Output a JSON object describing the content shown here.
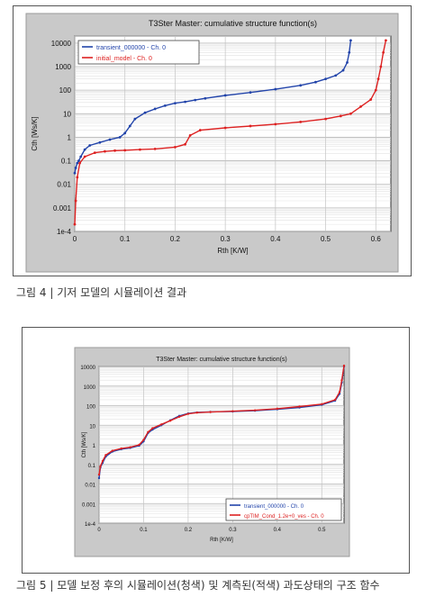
{
  "captions": {
    "fig4": "그림 4 |  기저 모델의 시뮬레이션 결과",
    "fig5": "그림 5 |  모델 보정 후의 시뮬레이션(청색) 및 계측된(적색) 과도상태의 구조 함수"
  },
  "chart_data": [
    {
      "type": "line",
      "title": "T3Ster Master: cumulative structure function(s)",
      "xlabel": "Rth  [K/W]",
      "ylabel": "Cth  [Ws/K]",
      "xlim": [
        0,
        0.63
      ],
      "ylim": [
        0.0001,
        20000
      ],
      "yscale": "log",
      "grid": true,
      "legend_position": "top-left",
      "x_ticks": [
        {
          "v": 0,
          "label": "0"
        },
        {
          "v": 0.1,
          "label": "0.1"
        },
        {
          "v": 0.2,
          "label": "0.2"
        },
        {
          "v": 0.3,
          "label": "0.3"
        },
        {
          "v": 0.4,
          "label": "0.4"
        },
        {
          "v": 0.5,
          "label": "0.5"
        },
        {
          "v": 0.6,
          "label": "0.6"
        }
      ],
      "y_ticks": [
        {
          "v": 10000,
          "label": "10000"
        },
        {
          "v": 1000,
          "label": "1000"
        },
        {
          "v": 100,
          "label": "100"
        },
        {
          "v": 10,
          "label": "10"
        },
        {
          "v": 1,
          "label": "1"
        },
        {
          "v": 0.1,
          "label": "0.1"
        },
        {
          "v": 0.01,
          "label": "0.01"
        },
        {
          "v": 0.001,
          "label": "0.001"
        },
        {
          "v": 0.0001,
          "label": "1e-4"
        }
      ],
      "series": [
        {
          "name": "transient_000000 - Ch. 0",
          "color": "#2244aa",
          "x": [
            0,
            0.002,
            0.005,
            0.008,
            0.012,
            0.02,
            0.03,
            0.05,
            0.07,
            0.09,
            0.1,
            0.11,
            0.12,
            0.14,
            0.16,
            0.18,
            0.2,
            0.22,
            0.24,
            0.26,
            0.3,
            0.35,
            0.4,
            0.45,
            0.48,
            0.5,
            0.52,
            0.535,
            0.543,
            0.547,
            0.55
          ],
          "y": [
            0.03,
            0.05,
            0.08,
            0.1,
            0.15,
            0.3,
            0.45,
            0.6,
            0.8,
            1.0,
            1.5,
            3,
            6,
            11,
            16,
            22,
            28,
            32,
            38,
            45,
            60,
            80,
            110,
            160,
            220,
            300,
            420,
            700,
            1500,
            4000,
            13000
          ]
        },
        {
          "name": "initial_model - Ch. 0",
          "color": "#dd2222",
          "x": [
            0,
            0.002,
            0.005,
            0.01,
            0.02,
            0.04,
            0.06,
            0.08,
            0.1,
            0.13,
            0.16,
            0.2,
            0.22,
            0.23,
            0.25,
            0.3,
            0.35,
            0.4,
            0.45,
            0.5,
            0.53,
            0.55,
            0.57,
            0.59,
            0.6,
            0.605,
            0.61,
            0.615,
            0.62
          ],
          "y": [
            0.0002,
            0.002,
            0.02,
            0.08,
            0.15,
            0.22,
            0.25,
            0.27,
            0.28,
            0.3,
            0.32,
            0.38,
            0.5,
            1.2,
            2.0,
            2.5,
            3,
            3.6,
            4.5,
            6,
            8,
            10,
            20,
            40,
            100,
            300,
            1000,
            4000,
            13000
          ]
        }
      ]
    },
    {
      "type": "line",
      "title": "T3Ster Master: cumulative structure function(s)",
      "xlabel": "Rth  [K/W]",
      "ylabel": "Cth  [Ws/K]",
      "xlim": [
        0,
        0.55
      ],
      "ylim": [
        0.0001,
        10000
      ],
      "yscale": "log",
      "grid": true,
      "legend_position": "bottom-right",
      "x_ticks": [
        {
          "v": 0,
          "label": "0"
        },
        {
          "v": 0.1,
          "label": "0.1"
        },
        {
          "v": 0.2,
          "label": "0.2"
        },
        {
          "v": 0.3,
          "label": "0.3"
        },
        {
          "v": 0.4,
          "label": "0.4"
        },
        {
          "v": 0.5,
          "label": "0.5"
        }
      ],
      "y_ticks": [
        {
          "v": 10000,
          "label": "10000"
        },
        {
          "v": 1000,
          "label": "1000"
        },
        {
          "v": 100,
          "label": "100"
        },
        {
          "v": 10,
          "label": "10"
        },
        {
          "v": 1,
          "label": "1"
        },
        {
          "v": 0.1,
          "label": "0.1"
        },
        {
          "v": 0.01,
          "label": "0.01"
        },
        {
          "v": 0.001,
          "label": "0.001"
        },
        {
          "v": 0.0001,
          "label": "1e-4"
        }
      ],
      "series": [
        {
          "name": "transient_000000 - Ch. 0",
          "color": "#2244aa",
          "x": [
            0,
            0.003,
            0.008,
            0.015,
            0.03,
            0.05,
            0.07,
            0.09,
            0.1,
            0.11,
            0.12,
            0.14,
            0.16,
            0.18,
            0.2,
            0.22,
            0.25,
            0.3,
            0.35,
            0.4,
            0.45,
            0.5,
            0.53,
            0.54,
            0.545,
            0.55
          ],
          "y": [
            0.02,
            0.07,
            0.12,
            0.25,
            0.45,
            0.6,
            0.7,
            0.9,
            1.5,
            4,
            6,
            10,
            18,
            30,
            40,
            45,
            48,
            50,
            55,
            65,
            80,
            110,
            180,
            400,
            1500,
            10000
          ]
        },
        {
          "name": "cpTIM_Cond_1.2e+0_ves - Ch. 0",
          "color": "#dd2222",
          "x": [
            0,
            0.003,
            0.008,
            0.015,
            0.03,
            0.05,
            0.07,
            0.09,
            0.1,
            0.11,
            0.12,
            0.14,
            0.16,
            0.18,
            0.2,
            0.22,
            0.25,
            0.3,
            0.35,
            0.4,
            0.45,
            0.5,
            0.53,
            0.54,
            0.545,
            0.55
          ],
          "y": [
            0.03,
            0.08,
            0.15,
            0.3,
            0.5,
            0.65,
            0.75,
            1.0,
            1.8,
            4.5,
            7,
            11,
            17,
            27,
            38,
            44,
            47,
            52,
            58,
            70,
            90,
            120,
            200,
            500,
            2000,
            11000
          ]
        }
      ]
    }
  ]
}
